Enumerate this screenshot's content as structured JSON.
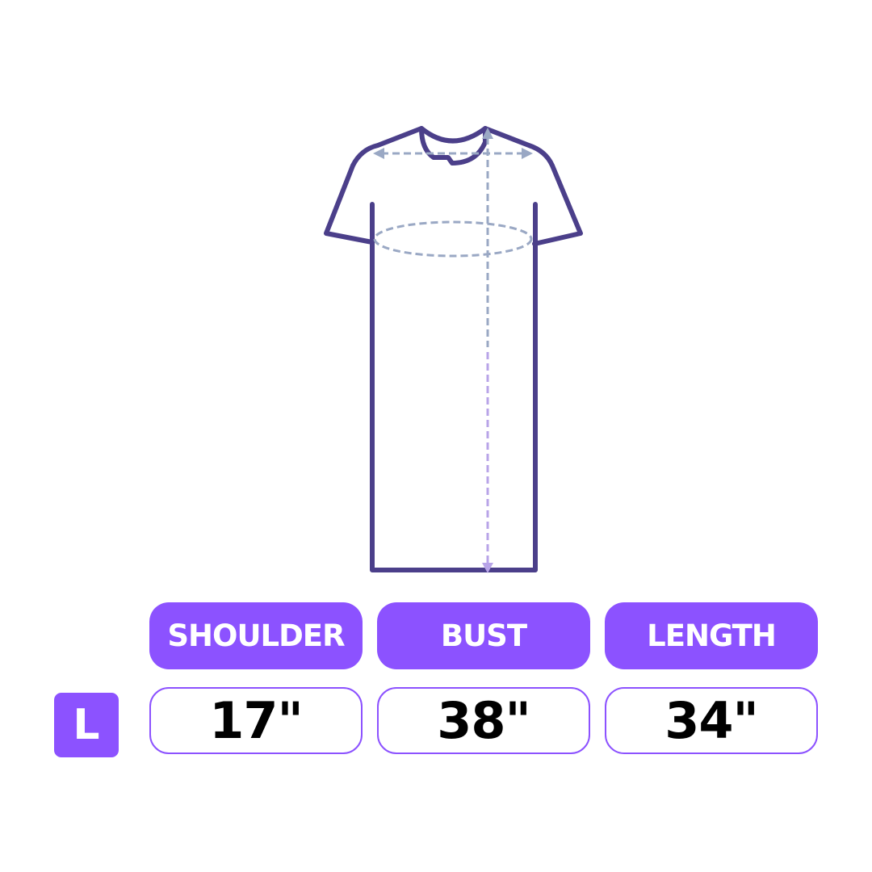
{
  "colors": {
    "accent": "#8c52ff",
    "outline": "#4b3f8a",
    "measure_line": "#9aa8c4",
    "length_line": "#b8a4e8"
  },
  "size_label": "L",
  "columns": [
    {
      "header": "SHOULDER",
      "value": "17\""
    },
    {
      "header": "BUST",
      "value": "38\""
    },
    {
      "header": "LENGTH",
      "value": "34\""
    }
  ]
}
